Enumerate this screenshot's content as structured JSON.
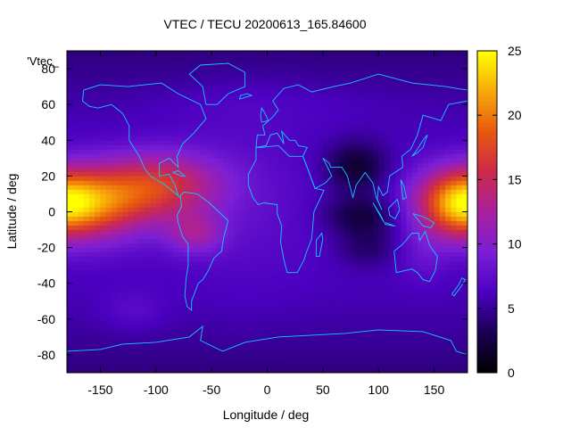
{
  "chart_data": {
    "type": "heatmap",
    "title": "VTEC / TECU 20200613_165.84600",
    "xlabel": "Longitude / deg",
    "ylabel": "Latitude / deg",
    "legend_label": "'Vtec_",
    "xlim": [
      -180,
      180
    ],
    "ylim": [
      -90,
      90
    ],
    "x_ticks": [
      -150,
      -100,
      -50,
      0,
      50,
      100,
      150
    ],
    "y_ticks": [
      -80,
      -60,
      -40,
      -20,
      0,
      20,
      40,
      60,
      80
    ],
    "colorbar": {
      "range": [
        0,
        25
      ],
      "ticks": [
        0,
        5,
        10,
        15,
        20,
        25
      ],
      "palette": [
        "#000000",
        "#1a0052",
        "#4b00c0",
        "#7a1fd6",
        "#a8209e",
        "#cc2a4a",
        "#e8580f",
        "#f7a90a",
        "#ffff00"
      ]
    },
    "grid_step": {
      "lon": 5,
      "lat": 2.5
    },
    "features": [
      {
        "lon": -160,
        "lat": 5,
        "sigma_lon": 38,
        "sigma_lat": 14,
        "amplitude": 11.5
      },
      {
        "lon": -95,
        "lat": 15,
        "sigma_lon": 38,
        "sigma_lat": 13,
        "amplitude": 9
      },
      {
        "lon": -65,
        "lat": -12,
        "sigma_lon": 18,
        "sigma_lat": 8,
        "amplitude": 5
      },
      {
        "lon": 170,
        "lat": 5,
        "sigma_lon": 25,
        "sigma_lat": 13,
        "amplitude": 9.5
      },
      {
        "lon": -20,
        "lat": 10,
        "sigma_lon": 40,
        "sigma_lat": 40,
        "amplitude": 1
      },
      {
        "lon": 80,
        "lat": 25,
        "sigma_lon": 20,
        "sigma_lat": 10,
        "amplitude": -4.5
      },
      {
        "lon": 85,
        "lat": -2,
        "sigma_lon": 25,
        "sigma_lat": 8,
        "amplitude": -4
      },
      {
        "lon": 90,
        "lat": -20,
        "sigma_lon": 20,
        "sigma_lat": 8,
        "amplitude": -2.5
      },
      {
        "lon": 140,
        "lat": -25,
        "sigma_lon": 15,
        "sigma_lat": 10,
        "amplitude": 1.5
      },
      {
        "lon": -120,
        "lat": -55,
        "sigma_lon": 20,
        "sigma_lat": 8,
        "amplitude": 1.5
      },
      {
        "lon": 0,
        "lat": 60,
        "sigma_lon": 80,
        "sigma_lat": 10,
        "amplitude": 0.8
      }
    ],
    "background": {
      "base": 6.5,
      "polar_drop": 2.2
    }
  }
}
